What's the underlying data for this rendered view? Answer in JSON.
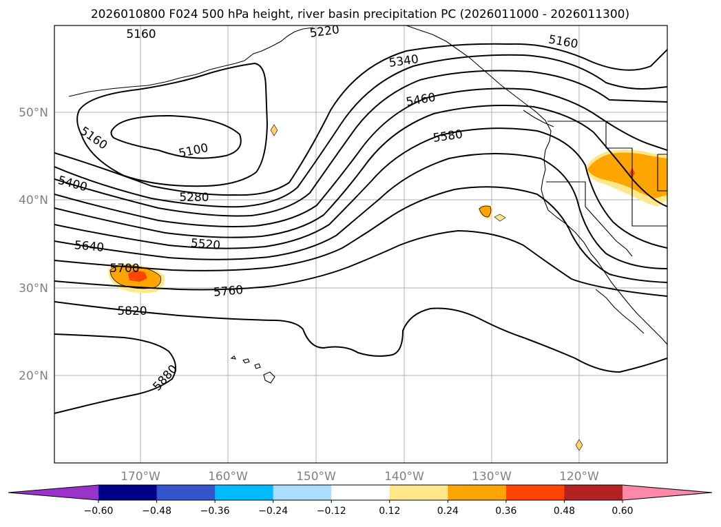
{
  "title": "2026010800 F024 500 hPa height, river basin precipitation PC (2026011000 - 2026011300)",
  "map": {
    "lat_labels": [
      "50°N",
      "40°N",
      "30°N",
      "20°N"
    ],
    "lon_labels": [
      "170°W",
      "160°W",
      "150°W",
      "140°W",
      "130°W",
      "120°W"
    ]
  },
  "contour_labels": [
    "5160",
    "5220",
    "5340",
    "5160",
    "5460",
    "5160",
    "5100",
    "5580",
    "5400",
    "5280",
    "5520",
    "5640",
    "5700",
    "5760",
    "5820",
    "5880"
  ],
  "colorbar": {
    "ticks": [
      "−0.60",
      "−0.48",
      "−0.36",
      "−0.24",
      "−0.12",
      "0.12",
      "0.24",
      "0.36",
      "0.48",
      "0.60"
    ],
    "colors": [
      "#9933cc",
      "#000088",
      "#3355cc",
      "#00bbff",
      "#aaddff",
      "#ffffff",
      "#ffe88a",
      "#ffa500",
      "#ff4500",
      "#b22222",
      "#ff88aa"
    ],
    "extend_low_color": "#9933cc",
    "extend_high_color": "#ff88aa"
  }
}
